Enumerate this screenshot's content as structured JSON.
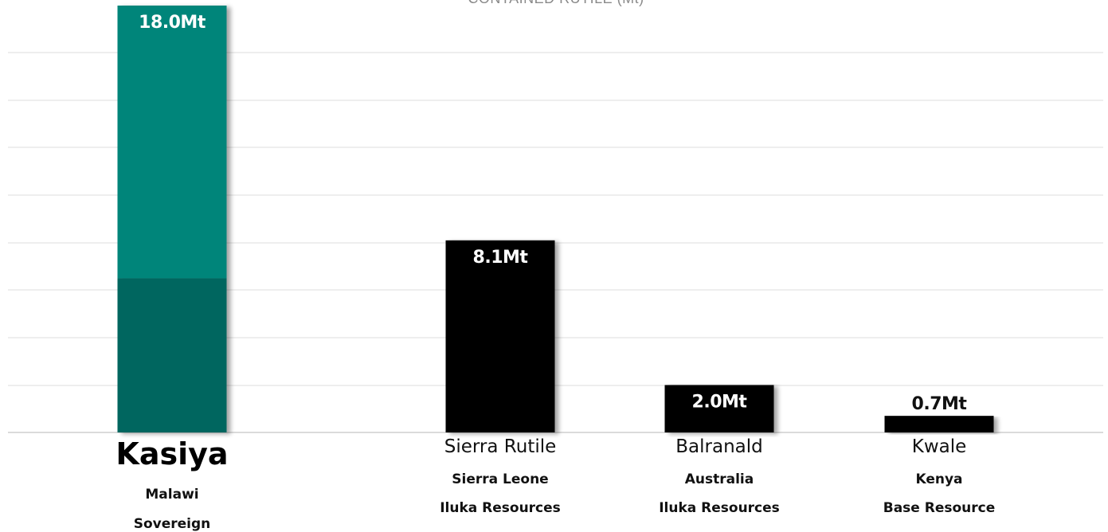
{
  "chart_data": {
    "type": "bar",
    "title": "CONTAINED RUTILE (Mt)",
    "ylim": [
      0,
      18.0
    ],
    "grid": true,
    "colors": {
      "highlight_top": "#00857A",
      "highlight_bottom": "#00665E",
      "default": "#000000",
      "gridline": "#dcdcdc",
      "baseline": "#cfcfcf"
    },
    "bars": [
      {
        "name": "Kasiya",
        "country": "Malawi",
        "owner": "Sovereign",
        "value": 18.0,
        "label": "18.0Mt",
        "highlight": true,
        "lower_segment": 6.5
      },
      {
        "name": "Sierra Rutile",
        "country": "Sierra Leone",
        "owner": "Iluka Resources",
        "value": 8.1,
        "label": "8.1Mt",
        "highlight": false
      },
      {
        "name": "Balranald",
        "country": "Australia",
        "owner": "Iluka Resources",
        "value": 2.0,
        "label": "2.0Mt",
        "highlight": false
      },
      {
        "name": "Kwale",
        "country": "Kenya",
        "owner": "Base Resource",
        "value": 0.7,
        "label": "0.7Mt",
        "highlight": false
      }
    ]
  }
}
